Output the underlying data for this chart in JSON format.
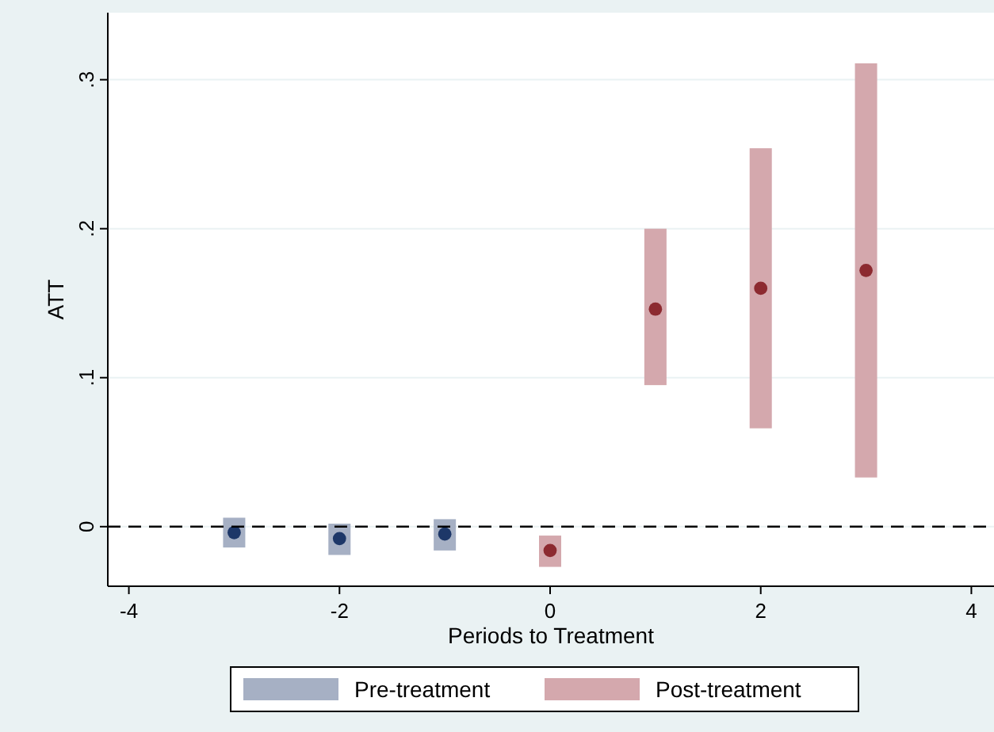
{
  "chart_data": {
    "type": "scatter",
    "xlabel": "Periods to Treatment",
    "ylabel": "ATT",
    "xlim": [
      -4.2,
      4.2
    ],
    "xticks": [
      -4,
      -2,
      0,
      2,
      4
    ],
    "ylim": [
      -0.04,
      0.345
    ],
    "yticks": [
      0,
      {
        "value": 0.1,
        "label": ".1"
      },
      {
        "value": 0.2,
        "label": ".2"
      },
      {
        "value": 0.3,
        "label": ".3"
      }
    ],
    "grid": "y",
    "legend": "bottom",
    "marker": "circle",
    "ref_lines": [
      {
        "axis": "y",
        "value": 0,
        "color": "#000000",
        "line_style": "dashed"
      }
    ],
    "series": [
      {
        "type": "bar",
        "name": "Pre-treatment",
        "color": "#a6b0c4",
        "x": [
          -3,
          -2,
          -1
        ],
        "base": [
          -0.014,
          -0.019,
          -0.016
        ],
        "values": [
          0.02,
          0.021,
          0.021
        ]
      },
      {
        "type": "bar",
        "name": "Post-treatment",
        "color": "#d4a8ad",
        "x": [
          0,
          1,
          2,
          3
        ],
        "base": [
          -0.027,
          0.095,
          0.066,
          0.033
        ],
        "values": [
          0.021,
          0.105,
          0.188,
          0.278
        ]
      },
      {
        "color": "#1d3768",
        "x": [
          -3,
          -2,
          -1
        ],
        "values": [
          -0.004,
          -0.008,
          -0.005
        ]
      },
      {
        "color": "#8c2a30",
        "x": [
          0,
          1,
          2,
          3
        ],
        "values": [
          -0.016,
          0.146,
          0.16,
          0.172
        ]
      }
    ]
  }
}
